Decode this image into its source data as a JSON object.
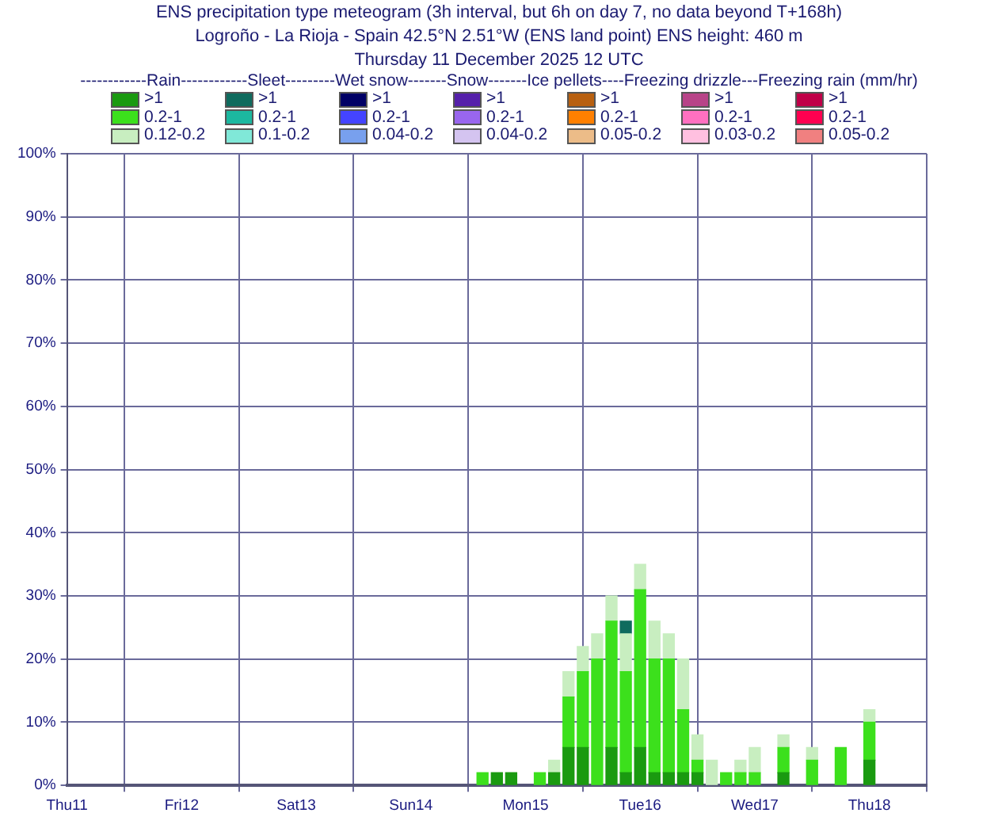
{
  "chart_data": {
    "type": "bar",
    "stacked": true,
    "title": "ENS precipitation type meteogram (3h interval, but 6h on day 7, no data beyond T+168h)",
    "subtitle": "Logroño - La Rioja - Spain 42.5°N 2.51°W (ENS land point) ENS height: 460 m\nThursday 11 December 2025 12 UTC",
    "legend_title": "------------Rain------------Sleet---------Wet snow-------Snow-------Ice pellets----Freezing drizzle---Freezing rain (mm/hr)",
    "legend": "top",
    "grid": true,
    "categories": [
      "Thu11",
      null,
      null,
      null,
      null,
      null,
      null,
      null,
      "Fri12",
      null,
      null,
      null,
      null,
      null,
      null,
      null,
      "Sat13",
      null,
      null,
      null,
      null,
      null,
      null,
      null,
      "Sun14",
      null,
      null,
      null,
      null,
      null,
      null,
      null,
      "Mon15",
      null,
      null,
      null,
      null,
      null,
      null,
      null,
      "Tue16",
      null,
      null,
      null,
      null,
      null,
      null,
      null,
      "Wed17",
      null,
      null,
      null,
      null,
      null,
      null,
      null,
      "Thu18",
      null,
      null,
      null,
      null
    ],
    "ylim": [
      0,
      100
    ],
    "yticks": [
      {
        "value": 0,
        "label": "0%"
      },
      {
        "value": 10,
        "label": "10%"
      },
      {
        "value": 20,
        "label": "20%"
      },
      {
        "value": 30,
        "label": "30%"
      },
      {
        "value": 40,
        "label": "40%"
      },
      {
        "value": 50,
        "label": "50%"
      },
      {
        "value": 60,
        "label": "60%"
      },
      {
        "value": 70,
        "label": "70%"
      },
      {
        "value": 80,
        "label": "80%"
      },
      {
        "value": 90,
        "label": "90%"
      },
      {
        "value": 100,
        "label": "100%"
      }
    ],
    "series": [
      {
        "name": ">1",
        "color": "#1a9a10",
        "values": [
          null,
          null,
          null,
          null,
          null,
          null,
          null,
          null,
          null,
          null,
          null,
          null,
          null,
          null,
          null,
          null,
          null,
          null,
          null,
          null,
          null,
          null,
          null,
          null,
          null,
          null,
          null,
          null,
          null,
          null,
          2,
          2,
          null,
          null,
          2,
          6,
          6,
          null,
          6,
          2,
          6,
          2,
          2,
          2,
          2,
          null,
          null,
          null,
          null,
          null,
          2,
          null,
          null,
          null,
          null,
          null,
          4,
          null,
          null,
          null,
          null
        ]
      },
      {
        "name": "0.2-1",
        "color": "#3ce01c",
        "values": [
          null,
          null,
          null,
          null,
          null,
          null,
          null,
          null,
          null,
          null,
          null,
          null,
          null,
          null,
          null,
          null,
          null,
          null,
          null,
          null,
          null,
          null,
          null,
          null,
          null,
          null,
          null,
          null,
          null,
          2,
          null,
          null,
          null,
          2,
          null,
          8,
          12,
          20,
          20,
          16,
          25,
          18,
          18,
          10,
          2,
          null,
          2,
          2,
          2,
          null,
          4,
          null,
          4,
          null,
          6,
          null,
          6,
          null,
          null,
          null,
          null
        ]
      },
      {
        "name": "0.12-0.2",
        "color": "#c8eec0",
        "values": [
          null,
          null,
          null,
          null,
          null,
          null,
          null,
          null,
          null,
          null,
          null,
          null,
          null,
          null,
          null,
          null,
          null,
          null,
          null,
          null,
          null,
          null,
          null,
          null,
          null,
          null,
          null,
          null,
          null,
          null,
          null,
          null,
          null,
          null,
          2,
          4,
          4,
          4,
          4,
          6,
          4,
          6,
          4,
          8,
          4,
          4,
          null,
          2,
          4,
          null,
          2,
          null,
          2,
          null,
          null,
          null,
          2,
          null,
          null,
          null,
          null
        ]
      },
      {
        "name": ">1",
        "color": "#0f6b5e",
        "values": [
          null,
          null,
          null,
          null,
          null,
          null,
          null,
          null,
          null,
          null,
          null,
          null,
          null,
          null,
          null,
          null,
          null,
          null,
          null,
          null,
          null,
          null,
          null,
          null,
          null,
          null,
          null,
          null,
          null,
          null,
          null,
          null,
          null,
          null,
          null,
          null,
          null,
          null,
          null,
          2,
          null,
          null,
          null,
          null,
          null,
          null,
          null,
          null,
          null,
          null,
          null,
          null,
          null,
          null,
          null,
          null,
          null,
          null,
          null,
          null,
          null
        ]
      },
      {
        "name": "0.2-1",
        "color": "#1cb8a0",
        "values": [
          null,
          null,
          null,
          null,
          null,
          null,
          null,
          null,
          null,
          null,
          null,
          null,
          null,
          null,
          null,
          null,
          null,
          null,
          null,
          null,
          null,
          null,
          null,
          null,
          null,
          null,
          null,
          null,
          null,
          null,
          null,
          null,
          null,
          null,
          null,
          null,
          null,
          null,
          null,
          null,
          null,
          null,
          null,
          null,
          null,
          null,
          null,
          null,
          null,
          null,
          null,
          null,
          null,
          null,
          null,
          null,
          null,
          null,
          null,
          null,
          null
        ]
      },
      {
        "name": "0.1-0.2",
        "color": "#80e8d8",
        "values": [
          null,
          null,
          null,
          null,
          null,
          null,
          null,
          null,
          null,
          null,
          null,
          null,
          null,
          null,
          null,
          null,
          null,
          null,
          null,
          null,
          null,
          null,
          null,
          null,
          null,
          null,
          null,
          null,
          null,
          null,
          null,
          null,
          null,
          null,
          null,
          null,
          null,
          null,
          null,
          null,
          null,
          null,
          null,
          null,
          null,
          null,
          null,
          null,
          null,
          null,
          null,
          null,
          null,
          null,
          null,
          null,
          null,
          null,
          null,
          null,
          null
        ]
      },
      {
        "name": ">1",
        "color": "#000066",
        "values": [
          null,
          null,
          null,
          null,
          null,
          null,
          null,
          null,
          null,
          null,
          null,
          null,
          null,
          null,
          null,
          null,
          null,
          null,
          null,
          null,
          null,
          null,
          null,
          null,
          null,
          null,
          null,
          null,
          null,
          null,
          null,
          null,
          null,
          null,
          null,
          null,
          null,
          null,
          null,
          null,
          null,
          null,
          null,
          null,
          null,
          null,
          null,
          null,
          null,
          null,
          null,
          null,
          null,
          null,
          null,
          null,
          null,
          null,
          null,
          null,
          null
        ]
      },
      {
        "name": "0.2-1",
        "color": "#4444ff",
        "values": [
          null,
          null,
          null,
          null,
          null,
          null,
          null,
          null,
          null,
          null,
          null,
          null,
          null,
          null,
          null,
          null,
          null,
          null,
          null,
          null,
          null,
          null,
          null,
          null,
          null,
          null,
          null,
          null,
          null,
          null,
          null,
          null,
          null,
          null,
          null,
          null,
          null,
          null,
          null,
          null,
          null,
          null,
          null,
          null,
          null,
          null,
          null,
          null,
          null,
          null,
          null,
          null,
          null,
          null,
          null,
          null,
          null,
          null,
          null,
          null,
          null
        ]
      },
      {
        "name": "0.04-0.2",
        "color": "#78a0ee",
        "values": [
          null,
          null,
          null,
          null,
          null,
          null,
          null,
          null,
          null,
          null,
          null,
          null,
          null,
          null,
          null,
          null,
          null,
          null,
          null,
          null,
          null,
          null,
          null,
          null,
          null,
          null,
          null,
          null,
          null,
          null,
          null,
          null,
          null,
          null,
          null,
          null,
          null,
          null,
          null,
          null,
          null,
          null,
          null,
          null,
          null,
          null,
          null,
          null,
          null,
          null,
          null,
          null,
          null,
          null,
          null,
          null,
          null,
          null,
          null,
          null,
          null
        ]
      },
      {
        "name": ">1",
        "color": "#5520aa",
        "values": [
          null,
          null,
          null,
          null,
          null,
          null,
          null,
          null,
          null,
          null,
          null,
          null,
          null,
          null,
          null,
          null,
          null,
          null,
          null,
          null,
          null,
          null,
          null,
          null,
          null,
          null,
          null,
          null,
          null,
          null,
          null,
          null,
          null,
          null,
          null,
          null,
          null,
          null,
          null,
          null,
          null,
          null,
          null,
          null,
          null,
          null,
          null,
          null,
          null,
          null,
          null,
          null,
          null,
          null,
          null,
          null,
          null,
          null,
          null,
          null,
          null
        ]
      },
      {
        "name": "0.2-1",
        "color": "#9966ee",
        "values": [
          null,
          null,
          null,
          null,
          null,
          null,
          null,
          null,
          null,
          null,
          null,
          null,
          null,
          null,
          null,
          null,
          null,
          null,
          null,
          null,
          null,
          null,
          null,
          null,
          null,
          null,
          null,
          null,
          null,
          null,
          null,
          null,
          null,
          null,
          null,
          null,
          null,
          null,
          null,
          null,
          null,
          null,
          null,
          null,
          null,
          null,
          null,
          null,
          null,
          null,
          null,
          null,
          null,
          null,
          null,
          null,
          null,
          null,
          null,
          null,
          null
        ]
      },
      {
        "name": "0.04-0.2",
        "color": "#d4c4f0",
        "values": [
          null,
          null,
          null,
          null,
          null,
          null,
          null,
          null,
          null,
          null,
          null,
          null,
          null,
          null,
          null,
          null,
          null,
          null,
          null,
          null,
          null,
          null,
          null,
          null,
          null,
          null,
          null,
          null,
          null,
          null,
          null,
          null,
          null,
          null,
          null,
          null,
          null,
          null,
          null,
          null,
          null,
          null,
          null,
          null,
          null,
          null,
          null,
          null,
          null,
          null,
          null,
          null,
          null,
          null,
          null,
          null,
          null,
          null,
          null,
          null,
          null
        ]
      },
      {
        "name": ">1",
        "color": "#b86010",
        "values": [
          null,
          null,
          null,
          null,
          null,
          null,
          null,
          null,
          null,
          null,
          null,
          null,
          null,
          null,
          null,
          null,
          null,
          null,
          null,
          null,
          null,
          null,
          null,
          null,
          null,
          null,
          null,
          null,
          null,
          null,
          null,
          null,
          null,
          null,
          null,
          null,
          null,
          null,
          null,
          null,
          null,
          null,
          null,
          null,
          null,
          null,
          null,
          null,
          null,
          null,
          null,
          null,
          null,
          null,
          null,
          null,
          null,
          null,
          null,
          null,
          null
        ]
      },
      {
        "name": "0.2-1",
        "color": "#ff8000",
        "values": [
          null,
          null,
          null,
          null,
          null,
          null,
          null,
          null,
          null,
          null,
          null,
          null,
          null,
          null,
          null,
          null,
          null,
          null,
          null,
          null,
          null,
          null,
          null,
          null,
          null,
          null,
          null,
          null,
          null,
          null,
          null,
          null,
          null,
          null,
          null,
          null,
          null,
          null,
          null,
          null,
          null,
          null,
          null,
          null,
          null,
          null,
          null,
          null,
          null,
          null,
          null,
          null,
          null,
          null,
          null,
          null,
          null,
          null,
          null,
          null,
          null
        ]
      },
      {
        "name": "0.05-0.2",
        "color": "#ecbc88",
        "values": [
          null,
          null,
          null,
          null,
          null,
          null,
          null,
          null,
          null,
          null,
          null,
          null,
          null,
          null,
          null,
          null,
          null,
          null,
          null,
          null,
          null,
          null,
          null,
          null,
          null,
          null,
          null,
          null,
          null,
          null,
          null,
          null,
          null,
          null,
          null,
          null,
          null,
          null,
          null,
          null,
          null,
          null,
          null,
          null,
          null,
          null,
          null,
          null,
          null,
          null,
          null,
          null,
          null,
          null,
          null,
          null,
          null,
          null,
          null,
          null,
          null
        ]
      },
      {
        "name": ">1",
        "color": "#b84488",
        "values": [
          null,
          null,
          null,
          null,
          null,
          null,
          null,
          null,
          null,
          null,
          null,
          null,
          null,
          null,
          null,
          null,
          null,
          null,
          null,
          null,
          null,
          null,
          null,
          null,
          null,
          null,
          null,
          null,
          null,
          null,
          null,
          null,
          null,
          null,
          null,
          null,
          null,
          null,
          null,
          null,
          null,
          null,
          null,
          null,
          null,
          null,
          null,
          null,
          null,
          null,
          null,
          null,
          null,
          null,
          null,
          null,
          null,
          null,
          null,
          null,
          null
        ]
      },
      {
        "name": "0.2-1",
        "color": "#ff70c0",
        "values": [
          null,
          null,
          null,
          null,
          null,
          null,
          null,
          null,
          null,
          null,
          null,
          null,
          null,
          null,
          null,
          null,
          null,
          null,
          null,
          null,
          null,
          null,
          null,
          null,
          null,
          null,
          null,
          null,
          null,
          null,
          null,
          null,
          null,
          null,
          null,
          null,
          null,
          null,
          null,
          null,
          null,
          null,
          null,
          null,
          null,
          null,
          null,
          null,
          null,
          null,
          null,
          null,
          null,
          null,
          null,
          null,
          null,
          null,
          null,
          null,
          null
        ]
      },
      {
        "name": "0.03-0.2",
        "color": "#ffc0e0",
        "values": [
          null,
          null,
          null,
          null,
          null,
          null,
          null,
          null,
          null,
          null,
          null,
          null,
          null,
          null,
          null,
          null,
          null,
          null,
          null,
          null,
          null,
          null,
          null,
          null,
          null,
          null,
          null,
          null,
          null,
          null,
          null,
          null,
          null,
          null,
          null,
          null,
          null,
          null,
          null,
          null,
          null,
          null,
          null,
          null,
          null,
          null,
          null,
          null,
          null,
          null,
          null,
          null,
          null,
          null,
          null,
          null,
          null,
          null,
          null,
          null,
          null
        ]
      },
      {
        "name": ">1",
        "color": "#c00048",
        "values": [
          null,
          null,
          null,
          null,
          null,
          null,
          null,
          null,
          null,
          null,
          null,
          null,
          null,
          null,
          null,
          null,
          null,
          null,
          null,
          null,
          null,
          null,
          null,
          null,
          null,
          null,
          null,
          null,
          null,
          null,
          null,
          null,
          null,
          null,
          null,
          null,
          null,
          null,
          null,
          null,
          null,
          null,
          null,
          null,
          null,
          null,
          null,
          null,
          null,
          null,
          null,
          null,
          null,
          null,
          null,
          null,
          null,
          null,
          null,
          null,
          null
        ]
      },
      {
        "name": "0.2-1",
        "color": "#ff0050",
        "values": [
          null,
          null,
          null,
          null,
          null,
          null,
          null,
          null,
          null,
          null,
          null,
          null,
          null,
          null,
          null,
          null,
          null,
          null,
          null,
          null,
          null,
          null,
          null,
          null,
          null,
          null,
          null,
          null,
          null,
          null,
          null,
          null,
          null,
          null,
          null,
          null,
          null,
          null,
          null,
          null,
          null,
          null,
          null,
          null,
          null,
          null,
          null,
          null,
          null,
          null,
          null,
          null,
          null,
          null,
          null,
          null,
          null,
          null,
          null,
          null,
          null
        ]
      },
      {
        "name": "0.05-0.2",
        "color": "#f08080",
        "values": [
          null,
          null,
          null,
          null,
          null,
          null,
          null,
          null,
          null,
          null,
          null,
          null,
          null,
          null,
          null,
          null,
          null,
          null,
          null,
          null,
          null,
          null,
          null,
          null,
          null,
          null,
          null,
          null,
          null,
          null,
          null,
          null,
          null,
          null,
          null,
          null,
          null,
          null,
          null,
          null,
          null,
          null,
          null,
          null,
          null,
          null,
          null,
          null,
          null,
          null,
          null,
          null,
          null,
          null,
          null,
          null,
          null,
          null,
          null,
          null,
          null
        ]
      }
    ]
  }
}
